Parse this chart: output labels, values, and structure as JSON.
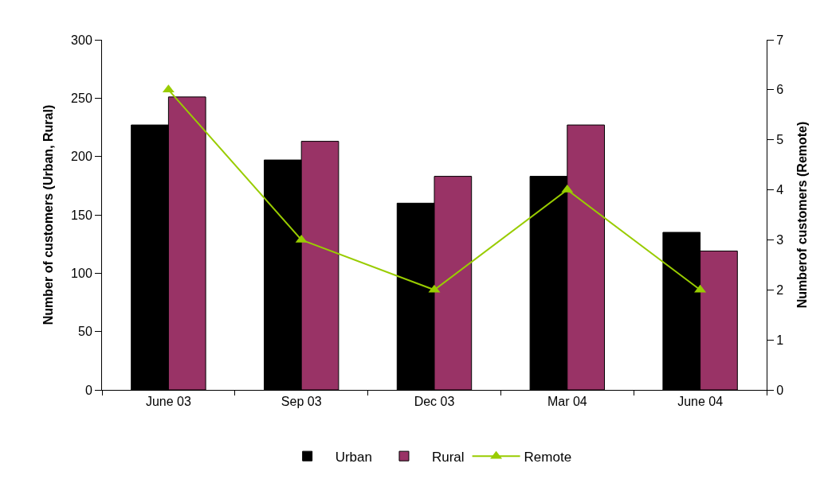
{
  "chart_data": {
    "type": "bar",
    "categories": [
      "June 03",
      "Sep 03",
      "Dec 03",
      "Mar 04",
      "June 04"
    ],
    "series": [
      {
        "name": "Urban",
        "color": "#000000",
        "values": [
          227,
          197,
          160,
          183,
          135
        ]
      },
      {
        "name": "Rural",
        "color": "#993366",
        "values": [
          251,
          213,
          183,
          227,
          119
        ]
      },
      {
        "name": "Remote",
        "color": "#99cc00",
        "type": "line",
        "axis": "y2",
        "marker": "triangle",
        "line_style": "solid",
        "values": [
          6,
          3,
          2,
          4,
          2
        ]
      }
    ],
    "ylabel": "Number of customers (Urban, Rural)",
    "y2label": "Numberof customers (Remote)",
    "ylim": [
      0,
      300
    ],
    "yticks": [
      0,
      50,
      100,
      150,
      200,
      250,
      300
    ],
    "y2lim": [
      0,
      7
    ],
    "y2ticks": [
      0,
      1,
      2,
      3,
      4,
      5,
      6,
      7
    ],
    "grid": false,
    "legend": "bottom"
  }
}
